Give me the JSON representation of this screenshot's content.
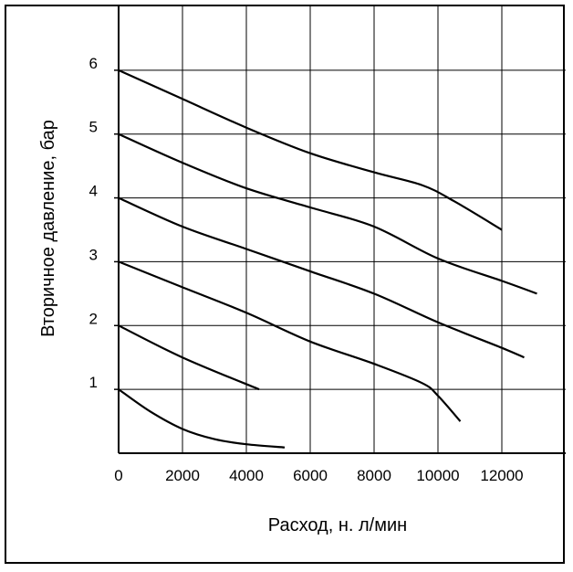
{
  "chart_data": {
    "type": "line",
    "title": "",
    "xlabel": "Расход, н. л/мин",
    "ylabel": "Вторичное давление, бар",
    "xlim": [
      0,
      14000
    ],
    "ylim": [
      0,
      7
    ],
    "grid": true,
    "x_ticks": [
      "0",
      "2000",
      "4000",
      "6000",
      "8000",
      "10000",
      "12000"
    ],
    "y_ticks": [
      "1",
      "2",
      "3",
      "4",
      "5",
      "6"
    ],
    "series": [
      {
        "x": [
          0,
          1000,
          2000,
          3000,
          4000,
          5200
        ],
        "y": [
          1.0,
          0.65,
          0.38,
          0.22,
          0.14,
          0.09
        ]
      },
      {
        "x": [
          0,
          2000,
          4400
        ],
        "y": [
          2.0,
          1.5,
          1.0
        ]
      },
      {
        "x": [
          0,
          2000,
          4000,
          6000,
          8000,
          9500,
          10000,
          10700
        ],
        "y": [
          3.0,
          2.6,
          2.2,
          1.75,
          1.4,
          1.1,
          0.9,
          0.5
        ]
      },
      {
        "x": [
          0,
          2000,
          4000,
          6000,
          8000,
          10000,
          12000,
          12700
        ],
        "y": [
          4.0,
          3.55,
          3.2,
          2.85,
          2.5,
          2.05,
          1.65,
          1.5
        ]
      },
      {
        "x": [
          0,
          2000,
          4000,
          6000,
          8000,
          10000,
          12000,
          13100
        ],
        "y": [
          5.0,
          4.55,
          4.15,
          3.85,
          3.55,
          3.05,
          2.7,
          2.5
        ]
      },
      {
        "x": [
          0,
          2000,
          4000,
          6000,
          8000,
          9500,
          10500,
          12000
        ],
        "y": [
          6.0,
          5.55,
          5.1,
          4.7,
          4.4,
          4.2,
          3.95,
          3.5
        ]
      }
    ]
  }
}
